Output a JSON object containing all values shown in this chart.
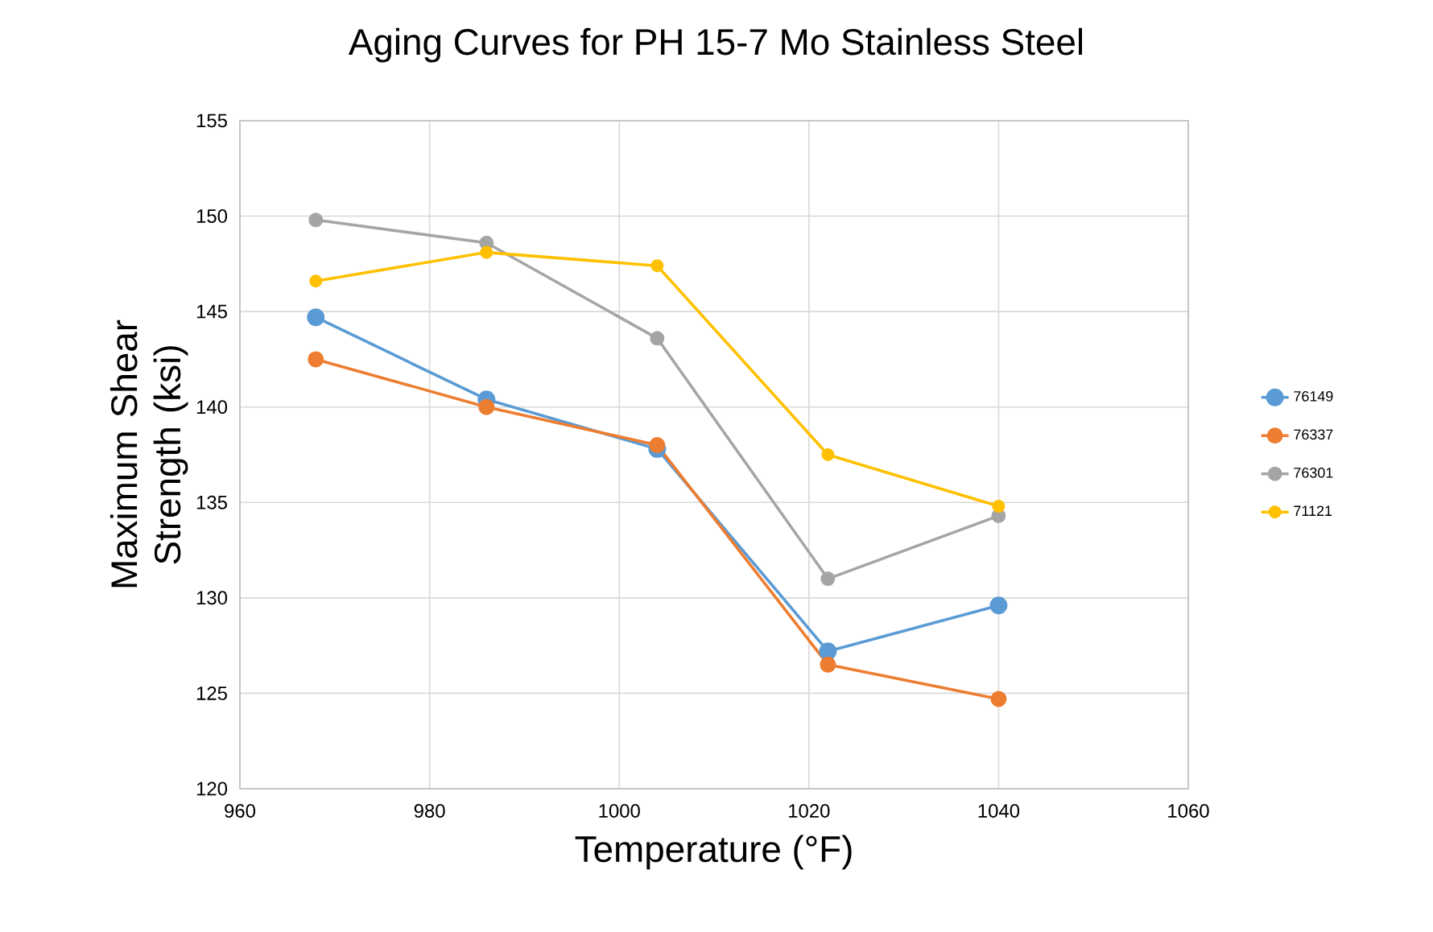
{
  "chart_data": {
    "type": "line",
    "title": "Aging Curves for PH 15-7 Mo Stainless Steel",
    "xlabel": "Temperature (°F)",
    "ylabel": "Maximum Shear Strength (ksi)",
    "x": [
      968,
      986,
      1004,
      1022,
      1040
    ],
    "series": [
      {
        "name": "76149",
        "color": "#5b9bd5",
        "values": [
          144.7,
          140.4,
          137.8,
          127.2,
          129.6
        ]
      },
      {
        "name": "76337",
        "color": "#ed7d31",
        "values": [
          142.5,
          140.0,
          138.0,
          126.5,
          124.7
        ]
      },
      {
        "name": "76301",
        "color": "#a5a5a5",
        "values": [
          149.8,
          148.6,
          143.6,
          131.0,
          134.3
        ]
      },
      {
        "name": "71121",
        "color": "#ffc000",
        "values": [
          146.6,
          148.1,
          147.4,
          137.5,
          134.8
        ]
      }
    ],
    "xlim": [
      960,
      1060
    ],
    "xticks": [
      960,
      980,
      1000,
      1020,
      1040,
      1060
    ],
    "ylim": [
      120,
      155
    ],
    "yticks": [
      120,
      125,
      130,
      135,
      140,
      145,
      150,
      155
    ],
    "grid": true,
    "legend": "right",
    "marker": "circle",
    "line_style": "solid"
  }
}
